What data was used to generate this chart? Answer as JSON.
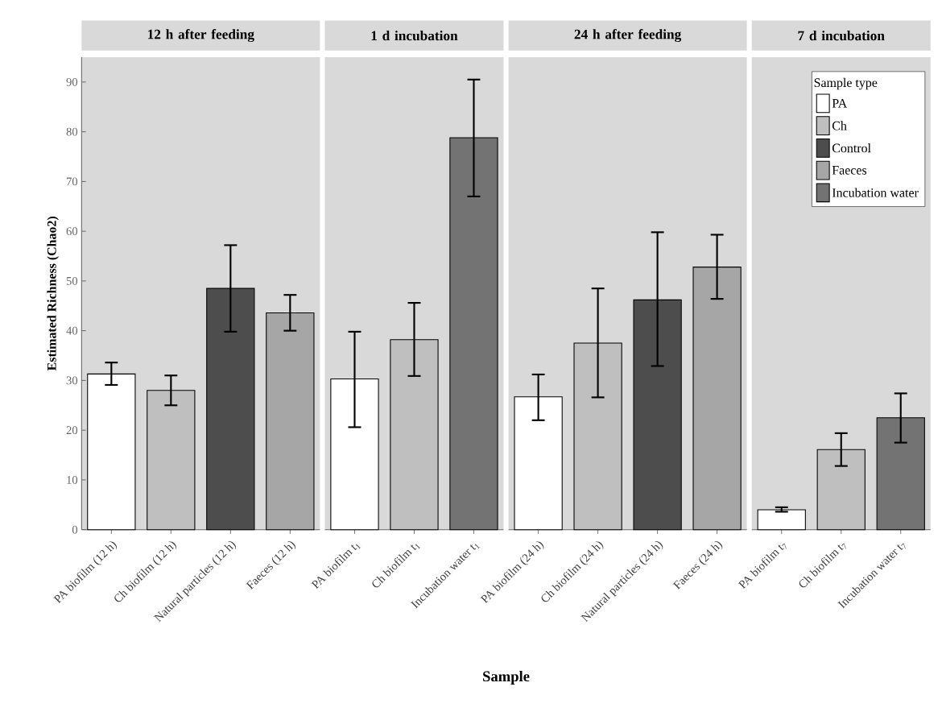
{
  "chart_data": [
    {
      "type": "bar",
      "title": "12 h after feeding",
      "ylabel": "Estimated Richness (Chao2)",
      "categories": [
        "PA biofilm (12 h)",
        "Ch biofilm (12 h)",
        "Natural particles (12 h)",
        "Faeces (12 h)"
      ],
      "ylim": [
        0,
        95
      ],
      "yticks": [
        0,
        10,
        20,
        30,
        40,
        50,
        60,
        70,
        80,
        90
      ],
      "series": [
        {
          "color": "#ffffff",
          "values": [
            31.3,
            null,
            null,
            null
          ],
          "errors": [
            [
              29.1,
              33.6
            ],
            null,
            null,
            null
          ]
        },
        {
          "color": "#bfbfbf",
          "values": [
            null,
            28.0,
            null,
            null
          ],
          "errors": [
            null,
            [
              25.0,
              31.0
            ],
            null,
            null
          ]
        },
        {
          "color": "#4d4d4d",
          "values": [
            null,
            null,
            48.5,
            null
          ],
          "errors": [
            null,
            null,
            [
              39.8,
              57.2
            ],
            null
          ]
        },
        {
          "color": "#a6a6a6",
          "values": [
            null,
            null,
            null,
            43.6
          ],
          "errors": [
            null,
            null,
            null,
            [
              40.0,
              47.2
            ]
          ]
        }
      ]
    },
    {
      "type": "bar",
      "title": "1 d incubation",
      "xlabel": "Sample",
      "categories": [
        "PA biofilm t$_{1}$",
        "Ch biofilm t$_{1}$",
        "Incubation water t$_{1}$"
      ],
      "ylim": [
        0,
        95
      ],
      "tick_labels": "x",
      "series": [
        {
          "color": "#ffffff",
          "values": [
            30.3,
            null,
            null
          ],
          "errors": [
            [
              20.6,
              39.8
            ],
            null,
            null
          ]
        },
        {
          "color": "#bfbfbf",
          "values": [
            null,
            38.2,
            null
          ],
          "errors": [
            null,
            [
              30.9,
              45.6
            ],
            null
          ]
        },
        {
          "color": "#737373",
          "values": [
            null,
            null,
            78.8
          ],
          "errors": [
            null,
            null,
            [
              67.0,
              90.5
            ]
          ]
        }
      ]
    },
    {
      "type": "bar",
      "title": "24 h after feeding",
      "categories": [
        "PA biofilm (24 h)",
        "Ch biofilm (24 h)",
        "Natural particles (24 h)",
        "Faeces (24 h)"
      ],
      "ylim": [
        0,
        95
      ],
      "tick_labels": "x",
      "series": [
        {
          "color": "#ffffff",
          "values": [
            26.7,
            null,
            null,
            null
          ],
          "errors": [
            [
              22.0,
              31.2
            ],
            null,
            null,
            null
          ]
        },
        {
          "color": "#bfbfbf",
          "values": [
            null,
            37.5,
            null,
            null
          ],
          "errors": [
            null,
            [
              26.6,
              48.5
            ],
            null,
            null
          ]
        },
        {
          "color": "#4d4d4d",
          "values": [
            null,
            null,
            46.2,
            null
          ],
          "errors": [
            null,
            null,
            [
              32.9,
              59.8
            ],
            null
          ]
        },
        {
          "color": "#a6a6a6",
          "values": [
            null,
            null,
            null,
            52.8
          ],
          "errors": [
            null,
            null,
            null,
            [
              46.4,
              59.3
            ]
          ]
        }
      ]
    },
    {
      "type": "bar",
      "title": "7 d incubation",
      "categories": [
        "PA biofilm t$_{7}$",
        "Ch biofilm t$_{7}$",
        "Incubation water t$_{7}$"
      ],
      "ylim": [
        0,
        95
      ],
      "tick_labels": "x",
      "legend": "top right",
      "legend_title": "Sample type",
      "series": [
        {
          "name": "PA",
          "color": "#ffffff",
          "values": [
            4.0,
            null,
            null
          ],
          "errors": [
            [
              3.6,
              4.5
            ],
            null,
            null
          ]
        },
        {
          "name": "Ch",
          "color": "#bfbfbf",
          "values": [
            null,
            16.1,
            null
          ],
          "errors": [
            null,
            [
              12.8,
              19.4
            ],
            null
          ]
        },
        {
          "name": "Control",
          "color": "#4d4d4d",
          "values": [
            null,
            null,
            null
          ],
          "errors": [
            null,
            null,
            null
          ]
        },
        {
          "name": "Faeces",
          "color": "#a6a6a6",
          "values": [
            null,
            null,
            null
          ],
          "errors": [
            null,
            null,
            null
          ]
        },
        {
          "name": "Incubation water",
          "color": "#737373",
          "values": [
            null,
            null,
            22.5
          ],
          "errors": [
            null,
            null,
            [
              17.5,
              27.4
            ]
          ]
        }
      ]
    }
  ]
}
